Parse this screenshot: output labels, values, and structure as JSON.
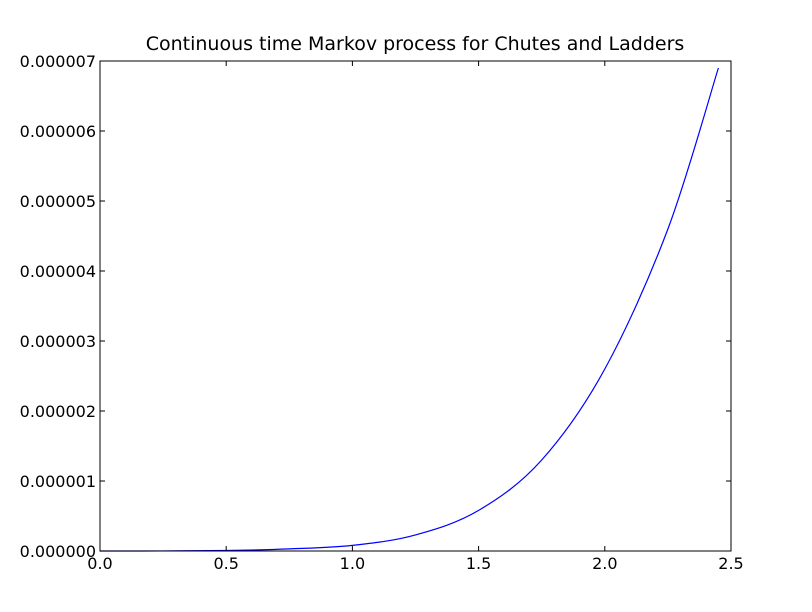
{
  "chart_data": {
    "type": "line",
    "title": "Continuous time Markov process for Chutes and Ladders",
    "xlabel": "",
    "ylabel": "",
    "xlim": [
      0.0,
      2.5
    ],
    "ylim": [
      0.0,
      7e-06
    ],
    "grid": false,
    "x_ticks": [
      "0.0",
      "0.5",
      "1.0",
      "1.5",
      "2.0",
      "2.5"
    ],
    "y_ticks": [
      "0.000000",
      "0.000001",
      "0.000002",
      "0.000003",
      "0.000004",
      "0.000005",
      "0.000006",
      "0.000007"
    ],
    "series": [
      {
        "color": "#0000ff",
        "x": [
          0.0,
          0.25,
          0.5,
          0.75,
          1.0,
          1.25,
          1.5,
          1.75,
          2.0,
          2.25,
          2.45
        ],
        "y": [
          0.0,
          1e-09,
          7e-09,
          3e-08,
          8e-08,
          2.3e-07,
          5.8e-07,
          1.3e-06,
          2.6e-06,
          4.6e-06,
          6.9e-06
        ]
      }
    ]
  }
}
